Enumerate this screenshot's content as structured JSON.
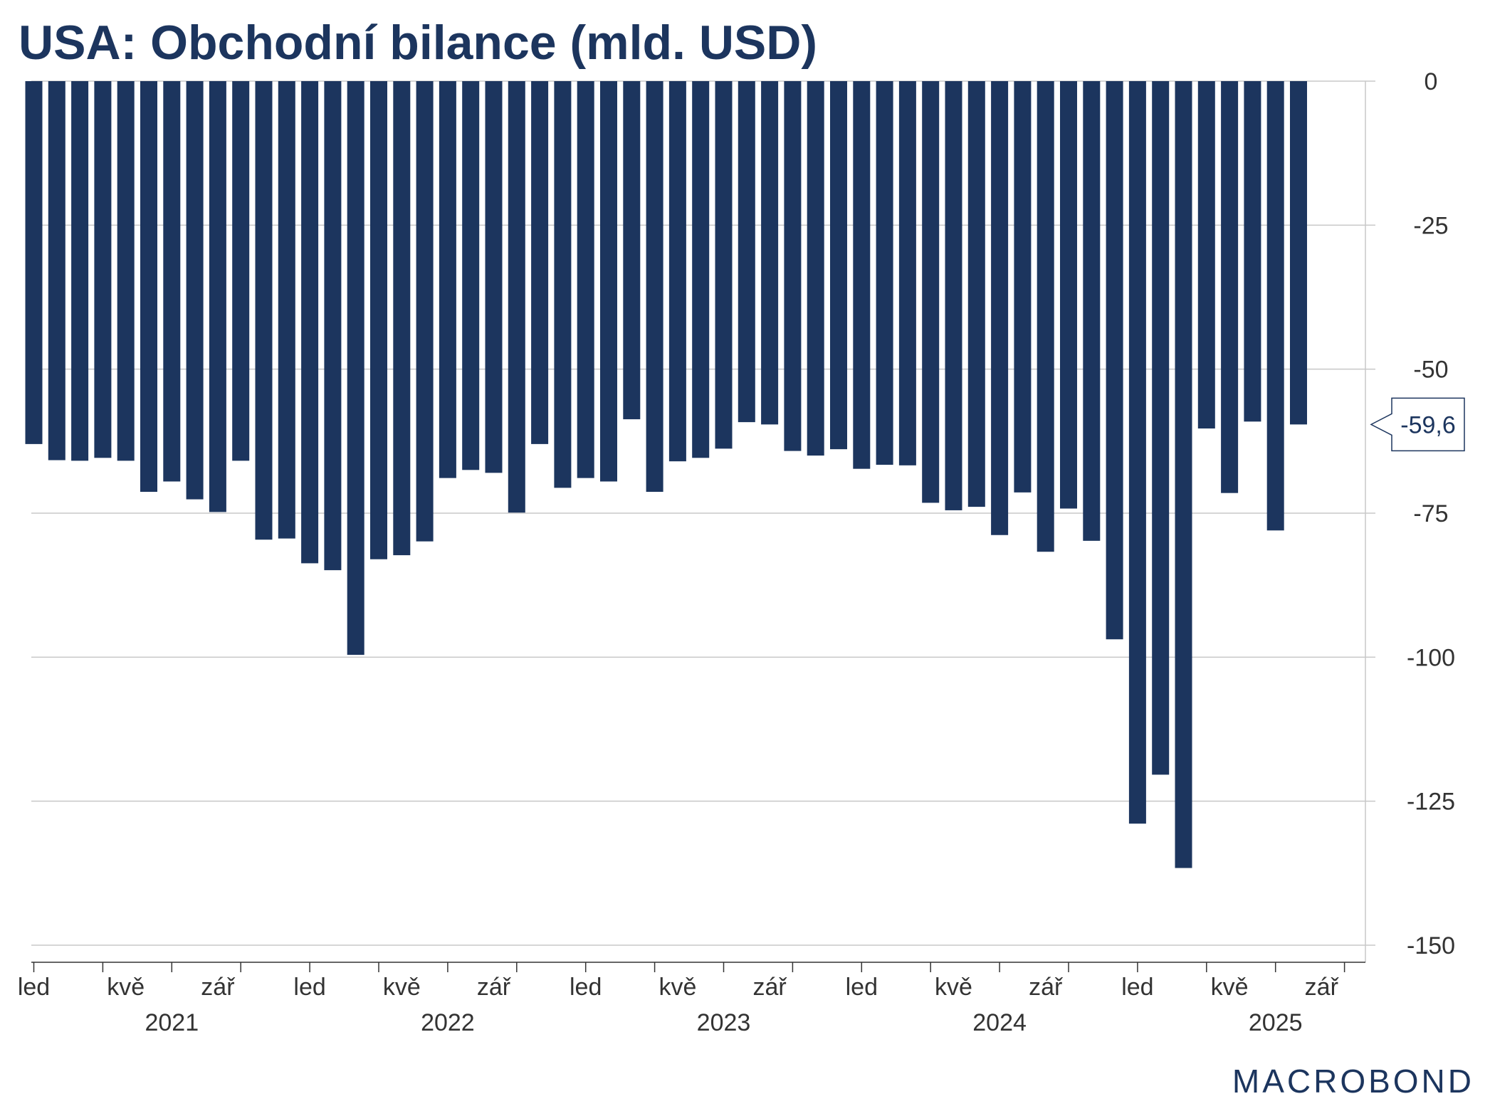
{
  "title": "USA: Obchodní bilance (mld. USD)",
  "brand": "MACROBOND",
  "colors": {
    "bar": "#1c355e",
    "title": "#1c355e",
    "grid": "#c8c8c8",
    "axis": "#333333",
    "callout": "#1c355e"
  },
  "chart_data": {
    "type": "bar",
    "title": "USA: Obchodní bilance (mld. USD)",
    "xlabel": "",
    "ylabel": "",
    "ylim": [
      -150,
      0
    ],
    "yticks": [
      0,
      -25,
      -50,
      -75,
      -100,
      -125,
      -150
    ],
    "ytick_labels": [
      "0",
      "-25",
      "-50",
      "-75",
      "-100",
      "-125",
      "-150"
    ],
    "y_axis_position": "right",
    "grid": true,
    "legend": "none",
    "categories": [
      "2021-01",
      "2021-02",
      "2021-03",
      "2021-04",
      "2021-05",
      "2021-06",
      "2021-07",
      "2021-08",
      "2021-09",
      "2021-10",
      "2021-11",
      "2021-12",
      "2022-01",
      "2022-02",
      "2022-03",
      "2022-04",
      "2022-05",
      "2022-06",
      "2022-07",
      "2022-08",
      "2022-09",
      "2022-10",
      "2022-11",
      "2022-12",
      "2023-01",
      "2023-02",
      "2023-03",
      "2023-04",
      "2023-05",
      "2023-06",
      "2023-07",
      "2023-08",
      "2023-09",
      "2023-10",
      "2023-11",
      "2023-12",
      "2024-01",
      "2024-02",
      "2024-03",
      "2024-04",
      "2024-05",
      "2024-06",
      "2024-07",
      "2024-08",
      "2024-09",
      "2024-10",
      "2024-11",
      "2024-12",
      "2025-01",
      "2025-02",
      "2025-03",
      "2025-04",
      "2025-05",
      "2025-06",
      "2025-07",
      "2025-08"
    ],
    "values": [
      -63.0,
      -65.8,
      -65.9,
      -65.4,
      -65.9,
      -71.3,
      -69.5,
      -72.6,
      -74.8,
      -65.9,
      -79.6,
      -79.4,
      -83.7,
      -84.9,
      -99.6,
      -83.0,
      -82.3,
      -79.9,
      -68.9,
      -67.5,
      -68.0,
      -74.9,
      -63.0,
      -70.6,
      -68.9,
      -69.5,
      -58.7,
      -71.3,
      -66.0,
      -65.4,
      -63.8,
      -59.2,
      -59.6,
      -64.2,
      -65.0,
      -63.9,
      -67.3,
      -66.6,
      -66.7,
      -73.2,
      -74.5,
      -73.9,
      -78.8,
      -71.4,
      -81.7,
      -74.2,
      -79.8,
      -96.9,
      -128.9,
      -120.4,
      -136.6,
      -60.3,
      -71.5,
      -59.1,
      -78.0,
      -59.6
    ],
    "x_ticks": {
      "positions": [
        "2021-01",
        "2021-04",
        "2021-07",
        "2021-10",
        "2022-01",
        "2022-04",
        "2022-07",
        "2022-10",
        "2023-01",
        "2023-04",
        "2023-07",
        "2023-10",
        "2024-01",
        "2024-04",
        "2024-07",
        "2024-10",
        "2025-01",
        "2025-04",
        "2025-07",
        "2025-10"
      ]
    },
    "x_labels": [
      {
        "at": "2021-01",
        "text": "led"
      },
      {
        "at": "2021-05",
        "text": "kvě"
      },
      {
        "at": "2021-09",
        "text": "zář"
      },
      {
        "at": "2022-01",
        "text": "led"
      },
      {
        "at": "2022-05",
        "text": "kvě"
      },
      {
        "at": "2022-09",
        "text": "zář"
      },
      {
        "at": "2023-01",
        "text": "led"
      },
      {
        "at": "2023-05",
        "text": "kvě"
      },
      {
        "at": "2023-09",
        "text": "zář"
      },
      {
        "at": "2024-01",
        "text": "led"
      },
      {
        "at": "2024-05",
        "text": "kvě"
      },
      {
        "at": "2024-09",
        "text": "zář"
      },
      {
        "at": "2025-01",
        "text": "led"
      },
      {
        "at": "2025-05",
        "text": "kvě"
      },
      {
        "at": "2025-09",
        "text": "zář"
      }
    ],
    "year_labels": [
      {
        "at": "2021-07",
        "text": "2021"
      },
      {
        "at": "2022-07",
        "text": "2022"
      },
      {
        "at": "2023-07",
        "text": "2023"
      },
      {
        "at": "2024-07",
        "text": "2024"
      },
      {
        "at": "2025-07",
        "text": "2025"
      }
    ],
    "last_value_label": {
      "value": -59.6,
      "text": "-59,6"
    }
  }
}
